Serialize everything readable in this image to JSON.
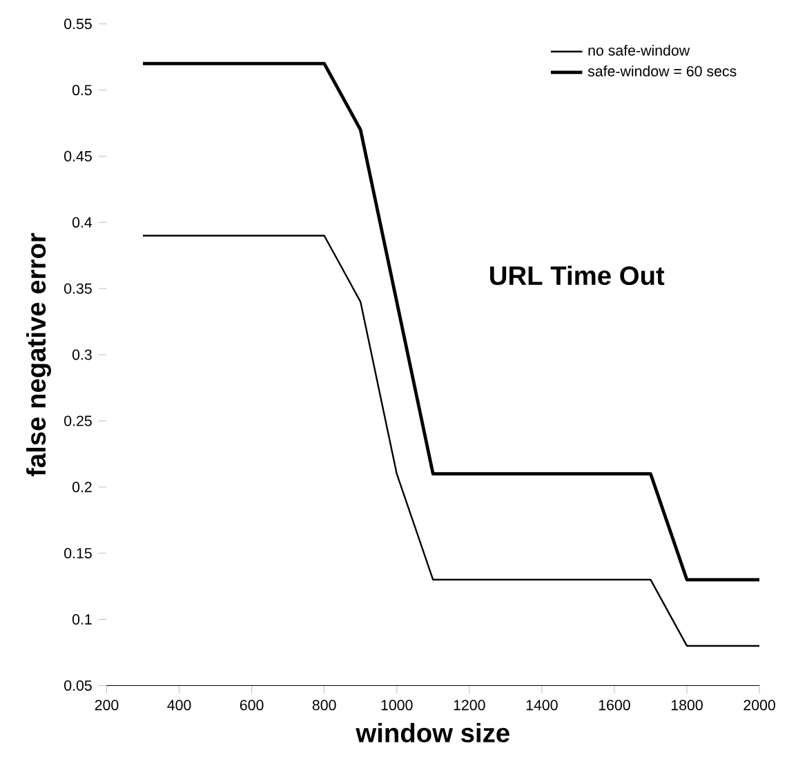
{
  "chart_data": {
    "type": "line",
    "xlabel": "window size",
    "ylabel": "false negative error",
    "annotations": [
      "URL Time Out"
    ],
    "series": [
      {
        "name": "no safe-window",
        "color": "#000000",
        "x": [
          300,
          800,
          900,
          1000,
          1100,
          1700,
          1800,
          2000
        ],
        "values": [
          0.39,
          0.39,
          0.34,
          0.21,
          0.13,
          0.13,
          0.08,
          0.08
        ]
      },
      {
        "name": "safe-window = 60 secs",
        "color": "#000000",
        "x": [
          300,
          800,
          900,
          1100,
          1700,
          1800,
          2000
        ],
        "values": [
          0.52,
          0.52,
          0.47,
          0.21,
          0.21,
          0.13,
          0.13
        ]
      }
    ],
    "xlim": [
      200,
      2000
    ],
    "xticks": [
      200,
      400,
      600,
      800,
      1000,
      1200,
      1400,
      1600,
      1800,
      2000
    ],
    "ylim": [
      0.05,
      0.55
    ],
    "yticks": [
      0.05,
      0.1,
      0.15,
      0.2,
      0.25,
      0.3,
      0.35,
      0.4,
      0.45,
      0.5,
      0.55
    ],
    "legend": "top right",
    "grid": false,
    "marker": "none",
    "line_style": "solid"
  }
}
